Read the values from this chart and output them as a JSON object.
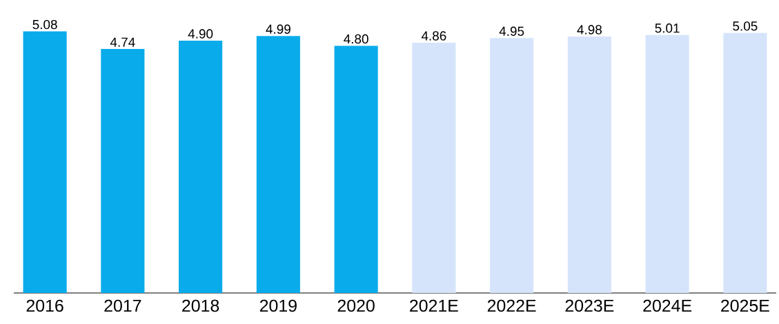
{
  "chart_data": {
    "type": "bar",
    "categories": [
      "2016",
      "2017",
      "2018",
      "2019",
      "2020",
      "2021E",
      "2022E",
      "2023E",
      "2024E",
      "2025E"
    ],
    "values": [
      5.08,
      4.74,
      4.9,
      4.99,
      4.8,
      4.86,
      4.95,
      4.98,
      5.01,
      5.05
    ],
    "colors": [
      "#0aabeb",
      "#0aabeb",
      "#0aabeb",
      "#0aabeb",
      "#0aabeb",
      "#d6e4fb",
      "#d6e4fb",
      "#d6e4fb",
      "#d6e4fb",
      "#d6e4fb"
    ],
    "value_labels": [
      "5.08",
      "4.74",
      "4.90",
      "4.99",
      "4.80",
      "4.86",
      "4.95",
      "4.98",
      "5.01",
      "5.05"
    ],
    "ylim": [
      0,
      5.1
    ]
  }
}
